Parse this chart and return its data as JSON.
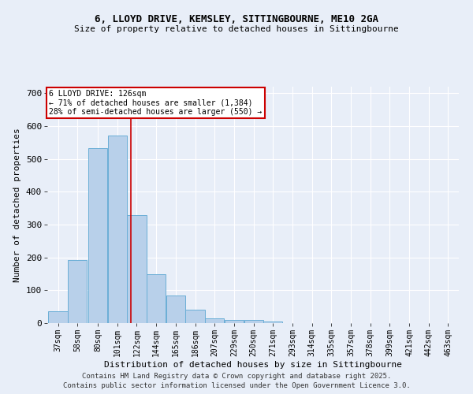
{
  "title_line1": "6, LLOYD DRIVE, KEMSLEY, SITTINGBOURNE, ME10 2GA",
  "title_line2": "Size of property relative to detached houses in Sittingbourne",
  "xlabel": "Distribution of detached houses by size in Sittingbourne",
  "ylabel": "Number of detached properties",
  "bar_heights": [
    35,
    192,
    533,
    572,
    330,
    148,
    85,
    40,
    15,
    10,
    10,
    5,
    0,
    0,
    0,
    0,
    0,
    0,
    0,
    0,
    0
  ],
  "bin_labels": [
    "37sqm",
    "58sqm",
    "80sqm",
    "101sqm",
    "122sqm",
    "144sqm",
    "165sqm",
    "186sqm",
    "207sqm",
    "229sqm",
    "250sqm",
    "271sqm",
    "293sqm",
    "314sqm",
    "335sqm",
    "357sqm",
    "378sqm",
    "399sqm",
    "421sqm",
    "442sqm",
    "463sqm"
  ],
  "bin_starts": [
    37,
    58,
    80,
    101,
    122,
    143,
    164,
    185,
    206,
    227,
    248,
    269,
    290,
    311,
    332,
    353,
    374,
    395,
    416,
    437,
    458
  ],
  "bin_width": 21,
  "bar_color": "#b8d0ea",
  "bar_edge_color": "#6aaed6",
  "vline_x_idx": 4,
  "vline_color": "#cc0000",
  "annotation_text": "6 LLOYD DRIVE: 126sqm\n← 71% of detached houses are smaller (1,384)\n28% of semi-detached houses are larger (550) →",
  "annotation_box_color": "#cc0000",
  "annotation_text_color": "#000000",
  "annotation_bg_color": "#ffffff",
  "ylim": [
    0,
    720
  ],
  "yticks": [
    0,
    100,
    200,
    300,
    400,
    500,
    600,
    700
  ],
  "bg_color": "#e8eef8",
  "grid_color": "#ffffff",
  "footer_line1": "Contains HM Land Registry data © Crown copyright and database right 2025.",
  "footer_line2": "Contains public sector information licensed under the Open Government Licence 3.0."
}
